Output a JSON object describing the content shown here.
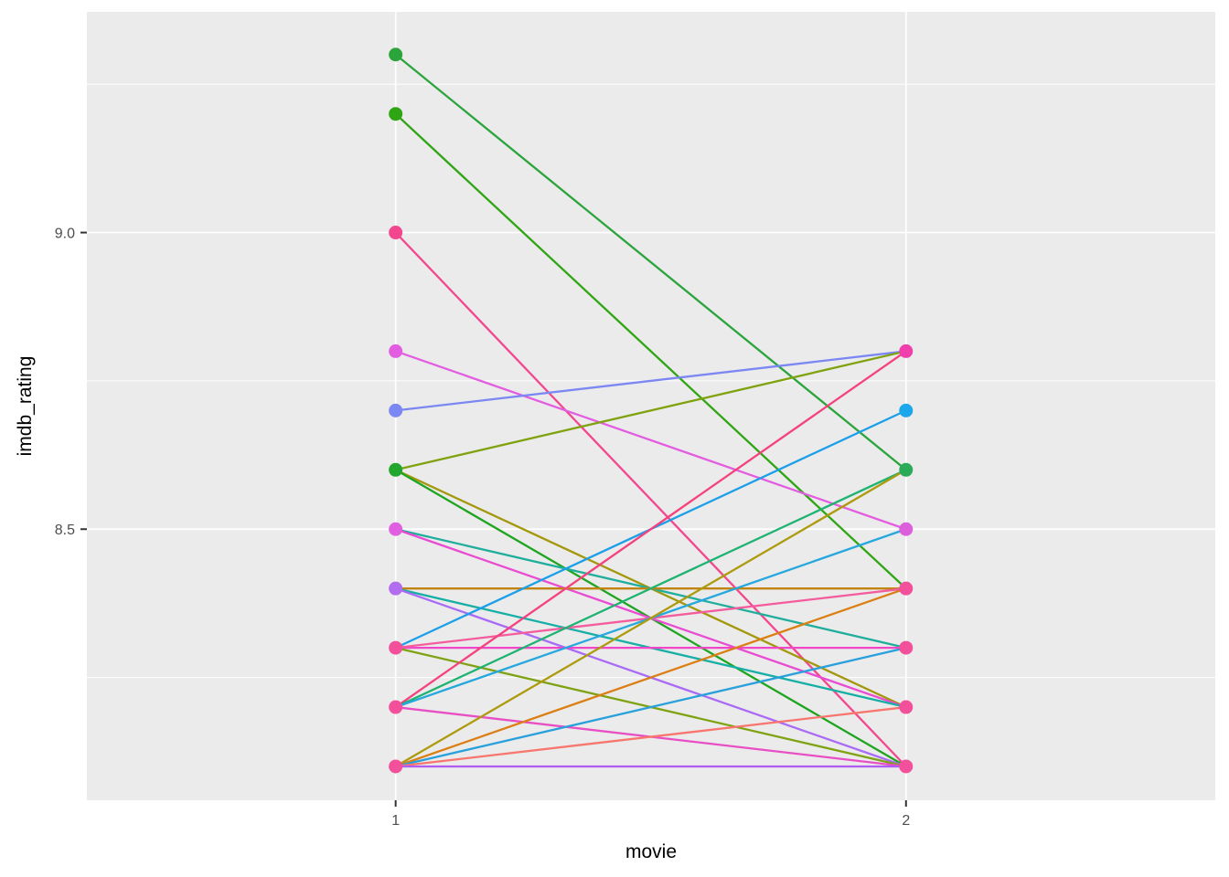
{
  "figure": {
    "background": "#ffffff",
    "panel_background": "#ebebeb",
    "grid_color": "#ffffff",
    "tick_mark_color": "#333333",
    "tick_label_color": "#4d4d4d",
    "axis_title_color": "#000000"
  },
  "chart_data": {
    "type": "line",
    "variant": "slopegraph",
    "title": "",
    "xlabel": "movie",
    "ylabel": "imdb_rating",
    "grid": true,
    "legend": "none",
    "xlim": [
      0.395,
      2.606
    ],
    "ylim": [
      8.043,
      9.372
    ],
    "x_ticks": [
      {
        "value": 1,
        "label": "1"
      },
      {
        "value": 2,
        "label": "2"
      }
    ],
    "y_ticks": [
      {
        "value": 9.0,
        "label": "9.0"
      },
      {
        "value": 8.5,
        "label": "8.5"
      }
    ],
    "y_minor": [
      9.25,
      8.75,
      8.25
    ],
    "x_minor": [],
    "x": [
      1,
      2
    ],
    "series": [
      {
        "y": [
          9.3,
          8.6
        ],
        "color": "#2BA43C"
      },
      {
        "y": [
          9.2,
          8.4
        ],
        "color": "#2FA513"
      },
      {
        "y": [
          9.0,
          8.1
        ],
        "color": "#F2478E"
      },
      {
        "y": [
          8.8,
          8.5
        ],
        "color": "#E35DE0"
      },
      {
        "y": [
          8.7,
          8.8
        ],
        "color": "#7B87F2"
      },
      {
        "y": [
          8.6,
          8.8
        ],
        "color": "#7FA20E"
      },
      {
        "y": [
          8.6,
          8.2
        ],
        "color": "#A3980D"
      },
      {
        "y": [
          8.6,
          8.1
        ],
        "color": "#1FA41F"
      },
      {
        "y": [
          8.5,
          8.3
        ],
        "color": "#1FAD9C"
      },
      {
        "y": [
          8.5,
          8.2
        ],
        "color": "#E94BD2"
      },
      {
        "y": [
          8.4,
          8.4
        ],
        "color": "#C28410"
      },
      {
        "y": [
          8.4,
          8.2
        ],
        "color": "#17AFA5"
      },
      {
        "y": [
          8.4,
          8.1
        ],
        "color": "#A96BF5"
      },
      {
        "y": [
          8.3,
          8.7
        ],
        "color": "#1C9FE8"
      },
      {
        "y": [
          8.3,
          8.3
        ],
        "color": "#F047C8"
      },
      {
        "y": [
          8.3,
          8.4
        ],
        "color": "#F45C9E"
      },
      {
        "y": [
          8.3,
          8.1
        ],
        "color": "#7FA213"
      },
      {
        "y": [
          8.2,
          8.8
        ],
        "color": "#F4427E"
      },
      {
        "y": [
          8.2,
          8.6
        ],
        "color": "#1EB370"
      },
      {
        "y": [
          8.2,
          8.5
        ],
        "color": "#26A8DE"
      },
      {
        "y": [
          8.2,
          8.1
        ],
        "color": "#E94FC4"
      },
      {
        "y": [
          8.1,
          8.6
        ],
        "color": "#AD9A0E"
      },
      {
        "y": [
          8.1,
          8.4
        ],
        "color": "#DB7E14"
      },
      {
        "y": [
          8.1,
          8.3
        ],
        "color": "#28A0DC"
      },
      {
        "y": [
          8.1,
          8.2
        ],
        "color": "#F8766D"
      },
      {
        "y": [
          8.1,
          8.1
        ],
        "color": "#AF5CF2"
      }
    ],
    "points": [
      {
        "movie": 1,
        "imdb_rating": 9.3,
        "color": "#2BA43C"
      },
      {
        "movie": 1,
        "imdb_rating": 9.2,
        "color": "#2FA513"
      },
      {
        "movie": 1,
        "imdb_rating": 9.0,
        "color": "#F2478E"
      },
      {
        "movie": 1,
        "imdb_rating": 8.8,
        "color": "#E35DE0"
      },
      {
        "movie": 1,
        "imdb_rating": 8.7,
        "color": "#7B87F2"
      },
      {
        "movie": 1,
        "imdb_rating": 8.6,
        "color": "#22A62E"
      },
      {
        "movie": 1,
        "imdb_rating": 8.5,
        "color": "#E05FE0"
      },
      {
        "movie": 1,
        "imdb_rating": 8.4,
        "color": "#B16CF0"
      },
      {
        "movie": 1,
        "imdb_rating": 8.3,
        "color": "#F2509B"
      },
      {
        "movie": 1,
        "imdb_rating": 8.2,
        "color": "#F2509B"
      },
      {
        "movie": 1,
        "imdb_rating": 8.1,
        "color": "#F2509B"
      },
      {
        "movie": 2,
        "imdb_rating": 8.8,
        "color": "#EE3FAC"
      },
      {
        "movie": 2,
        "imdb_rating": 8.7,
        "color": "#1CA7EC"
      },
      {
        "movie": 2,
        "imdb_rating": 8.6,
        "color": "#2BAA5A"
      },
      {
        "movie": 2,
        "imdb_rating": 8.5,
        "color": "#DC5FDC"
      },
      {
        "movie": 2,
        "imdb_rating": 8.4,
        "color": "#F2509B"
      },
      {
        "movie": 2,
        "imdb_rating": 8.3,
        "color": "#F2509B"
      },
      {
        "movie": 2,
        "imdb_rating": 8.2,
        "color": "#F2509B"
      },
      {
        "movie": 2,
        "imdb_rating": 8.1,
        "color": "#F2509B"
      }
    ]
  }
}
